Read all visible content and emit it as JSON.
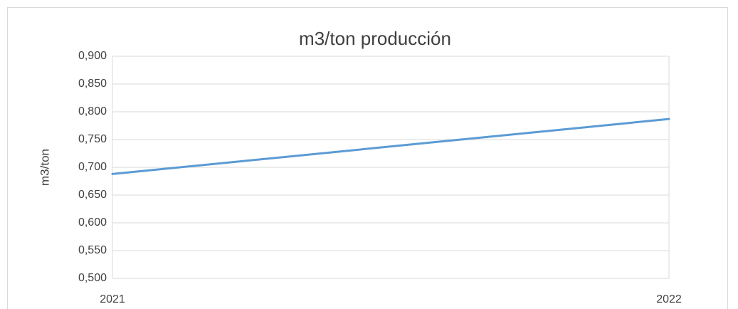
{
  "chart_data": {
    "type": "line",
    "title": "m3/ton producción",
    "y_label": "m3/ton",
    "categories": [
      "2021",
      "2022"
    ],
    "values": [
      0.688,
      0.787
    ],
    "color": "#5b9bd5",
    "ylim": [
      0.5,
      0.9
    ],
    "yticks": [
      {
        "value": 0.5,
        "label": "0,500"
      },
      {
        "value": 0.55,
        "label": "0,550"
      },
      {
        "value": 0.6,
        "label": "0,600"
      },
      {
        "value": 0.65,
        "label": "0,650"
      },
      {
        "value": 0.7,
        "label": "0,700"
      },
      {
        "value": 0.75,
        "label": "0,750"
      },
      {
        "value": 0.8,
        "label": "0,800"
      },
      {
        "value": 0.85,
        "label": "0,850"
      },
      {
        "value": 0.9,
        "label": "0,900"
      }
    ],
    "grid": true
  }
}
